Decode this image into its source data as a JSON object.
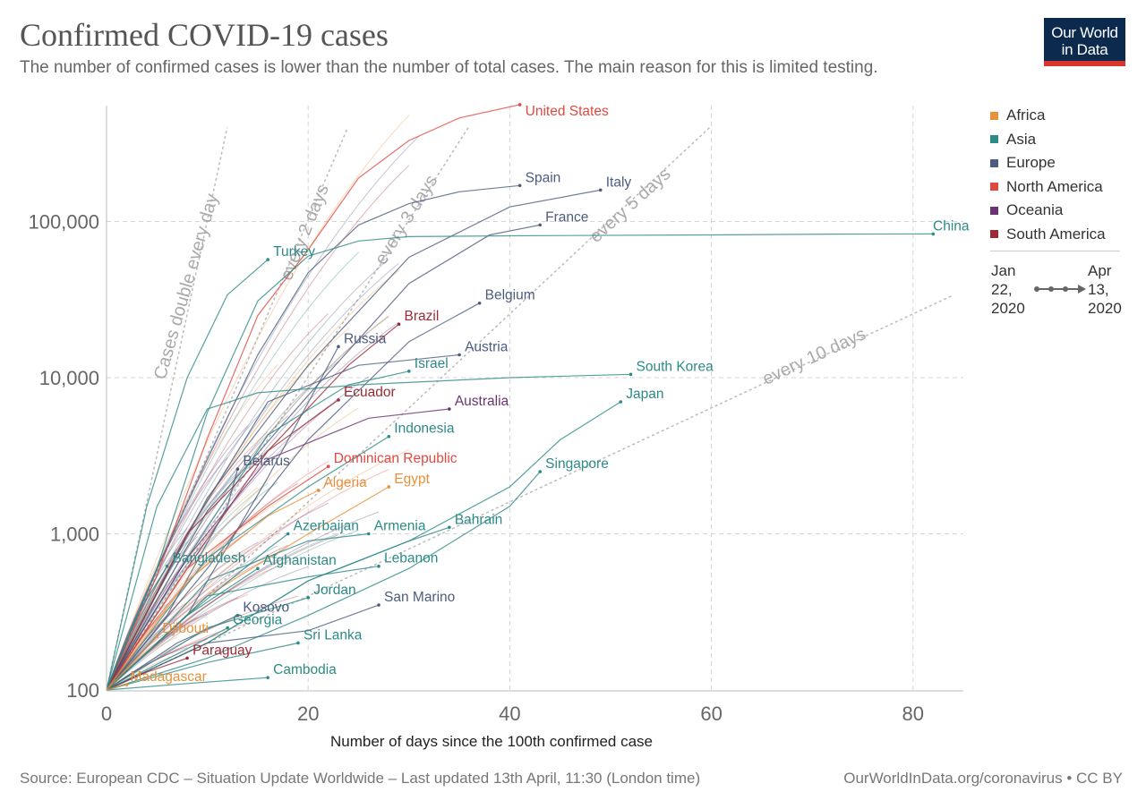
{
  "header": {
    "title": "Confirmed COVID-19 cases",
    "subtitle": "The number of confirmed cases is lower than the number of total cases. The main reason for this is limited testing.",
    "logo_line1": "Our World",
    "logo_line2": "in Data"
  },
  "footer": {
    "source": "Source: European CDC – Situation Update Worldwide – Last updated 13th April, 11:30 (London time)",
    "credit": "OurWorldInData.org/coronavirus • CC BY"
  },
  "colors": {
    "Africa": "#e8913b",
    "Asia": "#2c8a87",
    "Europe": "#4d5c7e",
    "North America": "#e0493f",
    "Oceania": "#6a3472",
    "South America": "#9b2a35"
  },
  "legend": {
    "items": [
      "Africa",
      "Asia",
      "Europe",
      "North America",
      "Oceania",
      "South America"
    ],
    "timeline_start": [
      "Jan",
      "22,",
      "2020"
    ],
    "timeline_end": [
      "Apr",
      "13,",
      "2020"
    ]
  },
  "chart_data": {
    "type": "line",
    "title": "Confirmed COVID-19 cases",
    "xlabel": "Number of days since the 100th confirmed case",
    "ylabel": "",
    "y_scale": "log",
    "xlim": [
      0,
      85
    ],
    "ylim": [
      100,
      600000
    ],
    "x_ticks": [
      0,
      20,
      40,
      60,
      80
    ],
    "y_ticks": [
      100,
      1000,
      10000,
      100000
    ],
    "y_tick_labels": [
      "100",
      "1,000",
      "10,000",
      "100,000"
    ],
    "grid": true,
    "legend_position": "right",
    "reference_lines": [
      {
        "label": "Cases double every day",
        "doubling_days": 1
      },
      {
        "label": "every 2 days",
        "doubling_days": 2
      },
      {
        "label": "every 3 days",
        "doubling_days": 3
      },
      {
        "label": "every 5 days",
        "doubling_days": 5
      },
      {
        "label": "every 10 days",
        "doubling_days": 10
      }
    ],
    "series": [
      {
        "name": "United States",
        "region": "North America",
        "x": [
          0,
          5,
          10,
          15,
          20,
          25,
          30,
          35,
          41
        ],
        "y": [
          100,
          540,
          4100,
          25000,
          66000,
          190000,
          330000,
          460000,
          560000
        ]
      },
      {
        "name": "Spain",
        "region": "Europe",
        "x": [
          0,
          5,
          10,
          15,
          20,
          25,
          30,
          35,
          41
        ],
        "y": [
          100,
          600,
          3000,
          14000,
          47000,
          95000,
          130000,
          155000,
          170000
        ]
      },
      {
        "name": "Italy",
        "region": "Europe",
        "x": [
          0,
          10,
          20,
          30,
          40,
          49
        ],
        "y": [
          100,
          1700,
          12000,
          59000,
          124000,
          159000
        ]
      },
      {
        "name": "France",
        "region": "Europe",
        "x": [
          0,
          10,
          20,
          30,
          38,
          43
        ],
        "y": [
          100,
          1400,
          7700,
          40000,
          82000,
          95000
        ]
      },
      {
        "name": "China",
        "region": "Asia",
        "x": [
          0,
          5,
          10,
          15,
          20,
          25,
          30,
          40,
          60,
          72,
          82
        ],
        "y": [
          100,
          600,
          6000,
          31000,
          60000,
          75000,
          80000,
          81000,
          82000,
          83000,
          83200
        ]
      },
      {
        "name": "Turkey",
        "region": "Asia",
        "x": [
          0,
          4,
          8,
          12,
          16
        ],
        "y": [
          100,
          1500,
          10000,
          34000,
          57000
        ]
      },
      {
        "name": "Belgium",
        "region": "Europe",
        "x": [
          0,
          10,
          20,
          30,
          37
        ],
        "y": [
          100,
          600,
          4000,
          17000,
          30000
        ]
      },
      {
        "name": "Brazil",
        "region": "South America",
        "x": [
          0,
          8,
          16,
          24,
          29
        ],
        "y": [
          100,
          600,
          3400,
          12000,
          22000
        ]
      },
      {
        "name": "Russia",
        "region": "Europe",
        "x": [
          0,
          8,
          16,
          23
        ],
        "y": [
          100,
          300,
          2300,
          15800
        ]
      },
      {
        "name": "Austria",
        "region": "Europe",
        "x": [
          0,
          8,
          16,
          25,
          35
        ],
        "y": [
          100,
          1000,
          7000,
          12000,
          14000
        ]
      },
      {
        "name": "Israel",
        "region": "Asia",
        "x": [
          0,
          8,
          16,
          24,
          30
        ],
        "y": [
          100,
          700,
          4300,
          9000,
          11000
        ]
      },
      {
        "name": "South Korea",
        "region": "Asia",
        "x": [
          0,
          5,
          10,
          15,
          25,
          40,
          52
        ],
        "y": [
          100,
          1500,
          6300,
          8000,
          9000,
          10000,
          10500
        ]
      },
      {
        "name": "Ecuador",
        "region": "South America",
        "x": [
          0,
          8,
          16,
          23
        ],
        "y": [
          100,
          1000,
          3400,
          7200
        ]
      },
      {
        "name": "Japan",
        "region": "Asia",
        "x": [
          0,
          10,
          20,
          30,
          40,
          45,
          51
        ],
        "y": [
          100,
          200,
          500,
          900,
          2000,
          4000,
          7000
        ]
      },
      {
        "name": "Australia",
        "region": "Oceania",
        "x": [
          0,
          8,
          16,
          26,
          34
        ],
        "y": [
          100,
          700,
          3000,
          5500,
          6300
        ]
      },
      {
        "name": "Indonesia",
        "region": "Asia",
        "x": [
          0,
          10,
          20,
          28
        ],
        "y": [
          100,
          700,
          2000,
          4200
        ]
      },
      {
        "name": "Belarus",
        "region": "Europe",
        "x": [
          0,
          6,
          12,
          13
        ],
        "y": [
          100,
          300,
          1500,
          2600
        ]
      },
      {
        "name": "Dominican Republic",
        "region": "North America",
        "x": [
          0,
          8,
          16,
          22
        ],
        "y": [
          100,
          600,
          1500,
          2700
        ]
      },
      {
        "name": "Egypt",
        "region": "Africa",
        "x": [
          0,
          10,
          20,
          28
        ],
        "y": [
          100,
          400,
          1000,
          2000
        ]
      },
      {
        "name": "Algeria",
        "region": "Africa",
        "x": [
          0,
          8,
          16,
          21
        ],
        "y": [
          100,
          500,
          1300,
          1900
        ]
      },
      {
        "name": "Singapore",
        "region": "Asia",
        "x": [
          0,
          10,
          20,
          30,
          40,
          43
        ],
        "y": [
          100,
          160,
          300,
          600,
          1500,
          2500
        ]
      },
      {
        "name": "Azerbaijan",
        "region": "Asia",
        "x": [
          0,
          8,
          16,
          18
        ],
        "y": [
          100,
          300,
          800,
          1000
        ]
      },
      {
        "name": "Armenia",
        "region": "Asia",
        "x": [
          0,
          10,
          20,
          26
        ],
        "y": [
          100,
          500,
          900,
          1000
        ]
      },
      {
        "name": "Bahrain",
        "region": "Asia",
        "x": [
          0,
          10,
          20,
          30,
          34
        ],
        "y": [
          100,
          200,
          500,
          900,
          1100
        ]
      },
      {
        "name": "Bangladesh",
        "region": "Asia",
        "x": [
          0,
          3,
          6
        ],
        "y": [
          100,
          300,
          620
        ]
      },
      {
        "name": "Afghanistan",
        "region": "Asia",
        "x": [
          0,
          8,
          15
        ],
        "y": [
          100,
          300,
          600
        ]
      },
      {
        "name": "Lebanon",
        "region": "Asia",
        "x": [
          0,
          10,
          20,
          27
        ],
        "y": [
          100,
          400,
          530,
          620
        ]
      },
      {
        "name": "Kosovo",
        "region": "Europe",
        "x": [
          0,
          7,
          13
        ],
        "y": [
          100,
          200,
          300
        ]
      },
      {
        "name": "Jordan",
        "region": "Asia",
        "x": [
          0,
          10,
          20
        ],
        "y": [
          100,
          250,
          390
        ]
      },
      {
        "name": "San Marino",
        "region": "Europe",
        "x": [
          0,
          10,
          20,
          27
        ],
        "y": [
          100,
          200,
          240,
          350
        ]
      },
      {
        "name": "Georgia",
        "region": "Asia",
        "x": [
          0,
          7,
          12
        ],
        "y": [
          100,
          170,
          250
        ]
      },
      {
        "name": "Djibouti",
        "region": "Africa",
        "x": [
          0,
          3,
          5
        ],
        "y": [
          100,
          160,
          220
        ]
      },
      {
        "name": "Sri Lanka",
        "region": "Asia",
        "x": [
          0,
          10,
          19
        ],
        "y": [
          100,
          150,
          200
        ]
      },
      {
        "name": "Paraguay",
        "region": "South America",
        "x": [
          0,
          4,
          8
        ],
        "y": [
          100,
          130,
          160
        ]
      },
      {
        "name": "Cambodia",
        "region": "Asia",
        "x": [
          0,
          8,
          16
        ],
        "y": [
          100,
          110,
          120
        ]
      },
      {
        "name": "Madagascar",
        "region": "Africa",
        "x": [
          0,
          1,
          2
        ],
        "y": [
          100,
          105,
          108
        ]
      }
    ]
  }
}
